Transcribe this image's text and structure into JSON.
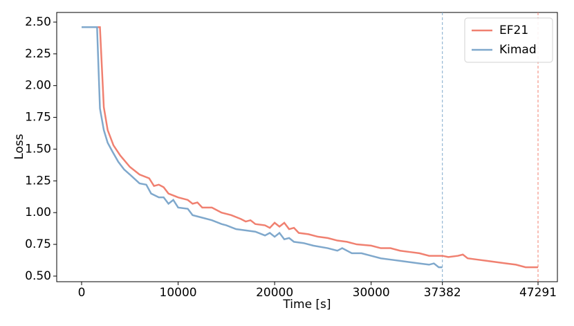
{
  "chart_data": {
    "type": "line",
    "xlabel": "Time [s]",
    "ylabel": "Loss",
    "xlim": [
      -2580,
      49298
    ],
    "ylim": [
      0.456,
      2.576
    ],
    "xticks": [
      0,
      10000,
      20000,
      30000,
      37382,
      47291
    ],
    "yticks": [
      {
        "value": 0.5,
        "label": "0.50"
      },
      {
        "value": 0.75,
        "label": "0.75"
      },
      {
        "value": 1.0,
        "label": "1.00"
      },
      {
        "value": 1.25,
        "label": "1.25"
      },
      {
        "value": 1.5,
        "label": "1.50"
      },
      {
        "value": 1.75,
        "label": "1.75"
      },
      {
        "value": 2.0,
        "label": "2.00"
      },
      {
        "value": 2.25,
        "label": "2.25"
      },
      {
        "value": 2.5,
        "label": "2.50"
      }
    ],
    "legend": "upper right",
    "vlines": [
      {
        "value": 37382,
        "color": "#7fa8cc"
      },
      {
        "value": 47291,
        "color": "#f08070"
      }
    ],
    "series": [
      {
        "name": "EF21",
        "color": "#f08070",
        "x": [
          0,
          1900,
          2300,
          2700,
          3300,
          4000,
          5000,
          6000,
          7000,
          7500,
          8000,
          8500,
          9000,
          10000,
          11000,
          11500,
          12000,
          12500,
          13500,
          14500,
          15500,
          16500,
          17000,
          17500,
          18000,
          19000,
          19500,
          20000,
          20500,
          21000,
          21500,
          22000,
          22500,
          23500,
          24500,
          25500,
          26500,
          27500,
          28500,
          30000,
          31000,
          32000,
          33000,
          34000,
          35000,
          36000,
          37382,
          38000,
          39000,
          39500,
          40000,
          41000,
          42000,
          43000,
          44000,
          45000,
          46000,
          47291
        ],
        "values": [
          2.46,
          2.46,
          1.83,
          1.65,
          1.53,
          1.45,
          1.36,
          1.3,
          1.27,
          1.21,
          1.22,
          1.2,
          1.15,
          1.12,
          1.1,
          1.07,
          1.08,
          1.04,
          1.04,
          1.0,
          0.98,
          0.95,
          0.93,
          0.94,
          0.91,
          0.9,
          0.88,
          0.92,
          0.89,
          0.92,
          0.87,
          0.88,
          0.84,
          0.83,
          0.81,
          0.8,
          0.78,
          0.77,
          0.75,
          0.74,
          0.72,
          0.72,
          0.7,
          0.69,
          0.68,
          0.66,
          0.66,
          0.65,
          0.66,
          0.67,
          0.64,
          0.63,
          0.62,
          0.61,
          0.6,
          0.59,
          0.57,
          0.57
        ]
      },
      {
        "name": "Kimad",
        "color": "#7fa8cc",
        "x": [
          0,
          1600,
          1900,
          2300,
          2700,
          3200,
          3800,
          4400,
          5000,
          6000,
          6700,
          7200,
          8000,
          8500,
          9000,
          9500,
          10000,
          11000,
          11500,
          12500,
          13500,
          14500,
          15000,
          16000,
          17000,
          18000,
          19000,
          19500,
          20000,
          20500,
          21000,
          21500,
          22000,
          23000,
          24000,
          25500,
          26500,
          27000,
          28000,
          29000,
          30000,
          31000,
          32000,
          33000,
          34000,
          35000,
          36000,
          36500,
          37000,
          37382
        ],
        "values": [
          2.46,
          2.46,
          1.82,
          1.65,
          1.55,
          1.48,
          1.4,
          1.34,
          1.3,
          1.23,
          1.22,
          1.15,
          1.12,
          1.12,
          1.07,
          1.1,
          1.04,
          1.03,
          0.98,
          0.96,
          0.94,
          0.91,
          0.9,
          0.87,
          0.86,
          0.85,
          0.82,
          0.84,
          0.81,
          0.84,
          0.79,
          0.8,
          0.77,
          0.76,
          0.74,
          0.72,
          0.7,
          0.72,
          0.68,
          0.68,
          0.66,
          0.64,
          0.63,
          0.62,
          0.61,
          0.6,
          0.59,
          0.6,
          0.57,
          0.57
        ]
      }
    ]
  }
}
